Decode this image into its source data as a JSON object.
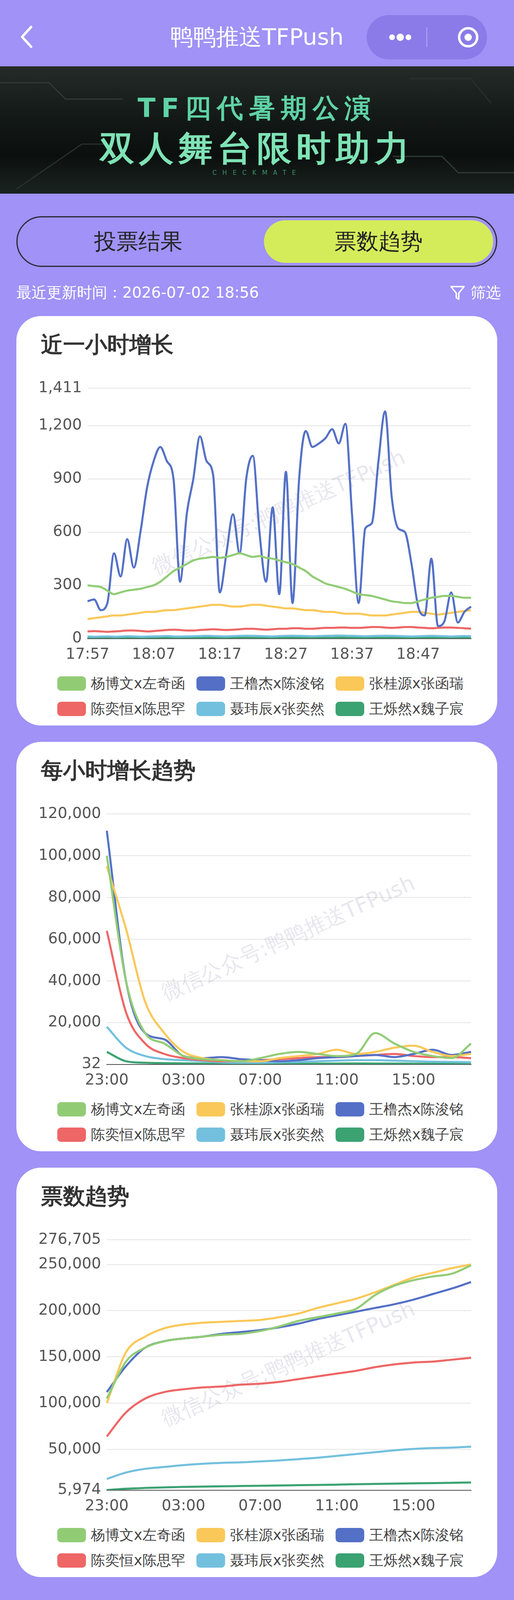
{
  "header": {
    "title": "鸭鸭推送TFPush"
  },
  "banner": {
    "line1": "TF四代暑期公演",
    "line2": "双人舞台限时助力",
    "tag": "CHECKMATE"
  },
  "tabs": [
    "投票结果",
    "票数趋势"
  ],
  "active_tab": "票数趋势",
  "update_time": "最近更新时间：2026-07-02 18:56",
  "filter": "筛选",
  "chart_data": [
    {
      "type": "line",
      "title": "近一小时增长",
      "watermark": "微信公众号:鸭鸭推送TFPush",
      "categories": [
        "17:57",
        null,
        null,
        null,
        null,
        null,
        null,
        null,
        null,
        null,
        "18:07",
        null,
        null,
        null,
        null,
        null,
        null,
        null,
        null,
        null,
        "18:17",
        null,
        null,
        null,
        null,
        null,
        null,
        null,
        null,
        null,
        "18:27",
        null,
        null,
        null,
        null,
        null,
        null,
        null,
        null,
        null,
        "18:37",
        null,
        null,
        null,
        null,
        null,
        null,
        null,
        null,
        null,
        "18:47",
        null,
        null,
        null,
        null,
        null,
        null,
        null,
        null
      ],
      "series": [
        {
          "name": "杨博文x左奇函",
          "color": "#91cc75",
          "values": [
            300,
            295,
            290,
            270,
            250,
            260,
            270,
            275,
            280,
            290,
            300,
            320,
            350,
            380,
            400,
            420,
            440,
            450,
            455,
            460,
            455,
            460,
            470,
            480,
            470,
            460,
            465,
            455,
            450,
            440,
            430,
            420,
            400,
            380,
            350,
            330,
            310,
            300,
            290,
            280,
            265,
            250,
            245,
            240,
            230,
            220,
            210,
            205,
            200,
            200,
            210,
            220,
            230,
            235,
            240,
            240,
            235,
            230,
            230
          ]
        },
        {
          "name": "王橹杰x陈浚铭",
          "color": "#5470c6",
          "values": [
            210,
            220,
            160,
            200,
            480,
            350,
            560,
            400,
            600,
            850,
            1000,
            1080,
            1000,
            900,
            320,
            700,
            900,
            1140,
            1000,
            920,
            260,
            480,
            700,
            480,
            900,
            1030,
            600,
            320,
            740,
            250,
            940,
            200,
            900,
            1170,
            1080,
            1100,
            1130,
            1180,
            1100,
            1210,
            700,
            200,
            620,
            650,
            1000,
            1280,
            800,
            620,
            600,
            420,
            180,
            130,
            450,
            70,
            100,
            260,
            90,
            150,
            180
          ]
        },
        {
          "name": "张桂源x张函瑞",
          "color": "#fac858",
          "values": [
            110,
            115,
            120,
            125,
            130,
            130,
            135,
            140,
            145,
            150,
            150,
            155,
            160,
            160,
            165,
            170,
            175,
            180,
            185,
            190,
            190,
            185,
            180,
            180,
            185,
            190,
            190,
            185,
            180,
            175,
            170,
            170,
            165,
            160,
            160,
            155,
            150,
            150,
            145,
            140,
            140,
            140,
            135,
            130,
            130,
            130,
            135,
            140,
            145,
            150,
            150,
            145,
            140,
            135,
            140,
            145,
            150,
            155,
            160
          ]
        },
        {
          "name": "陈奕恒x陈思罕",
          "color": "#ee6666",
          "values": [
            40,
            42,
            40,
            38,
            40,
            42,
            45,
            45,
            43,
            40,
            42,
            45,
            48,
            50,
            48,
            45,
            45,
            48,
            50,
            52,
            50,
            48,
            50,
            52,
            55,
            55,
            52,
            50,
            52,
            55,
            55,
            58,
            58,
            55,
            55,
            58,
            60,
            60,
            62,
            62,
            60,
            60,
            62,
            65,
            65,
            62,
            60,
            62,
            65,
            65,
            62,
            60,
            58,
            60,
            62,
            62,
            60,
            58,
            55
          ]
        },
        {
          "name": "聂玮辰x张奕然",
          "color": "#73c0de",
          "values": [
            12,
            10,
            11,
            12,
            10,
            11,
            13,
            12,
            10,
            11,
            12,
            13,
            14,
            12,
            11,
            12,
            13,
            14,
            15,
            14,
            13,
            12,
            14,
            15,
            16,
            15,
            14,
            13,
            12,
            14,
            15,
            16,
            15,
            14,
            13,
            14,
            15,
            16,
            17,
            16,
            15,
            14,
            13,
            14,
            15,
            16,
            15,
            14,
            13,
            12,
            13,
            14,
            15,
            14,
            13,
            12,
            13,
            14,
            13
          ]
        },
        {
          "name": "王烁然x魏子宸",
          "color": "#3ba272",
          "values": [
            5,
            4,
            5,
            6,
            5,
            4,
            5,
            6,
            5,
            4,
            5,
            6,
            5,
            4,
            5,
            6,
            5,
            4,
            5,
            6,
            5,
            4,
            5,
            6,
            5,
            4,
            5,
            6,
            5,
            4,
            5,
            6,
            5,
            4,
            5,
            6,
            5,
            4,
            5,
            6,
            5,
            4,
            5,
            6,
            5,
            4,
            5,
            6,
            5,
            4,
            5,
            6,
            5,
            4,
            5,
            6,
            5,
            4,
            5
          ]
        }
      ],
      "ylim": [
        0,
        1411
      ],
      "yticks": [
        0,
        300,
        600,
        900,
        {
          "value": 1200,
          "label": "1,200"
        },
        {
          "value": 1411,
          "label": "1,411"
        }
      ],
      "grid": true,
      "legend": "bottom"
    },
    {
      "type": "line",
      "title": "每小时增长趋势",
      "watermark": "微信公众号:鸭鸭推送TFPush",
      "categories": [
        "23:00",
        null,
        null,
        null,
        "03:00",
        null,
        null,
        null,
        "07:00",
        null,
        null,
        null,
        "11:00",
        null,
        null,
        null,
        "15:00",
        null,
        null,
        null
      ],
      "series": [
        {
          "name": "杨博文x左奇函",
          "color": "#91cc75",
          "values": [
            100000,
            40000,
            15000,
            10000,
            4000,
            2500,
            2000,
            1500,
            3000,
            5000,
            6000,
            5000,
            4000,
            5000,
            15000,
            10000,
            6000,
            4000,
            3000,
            10000
          ]
        },
        {
          "name": "张桂源x张函瑞",
          "color": "#fac858",
          "values": [
            95000,
            65000,
            30000,
            15000,
            6000,
            3000,
            2000,
            1500,
            1500,
            3000,
            4000,
            5000,
            7000,
            5000,
            6000,
            8000,
            9000,
            6000,
            4000,
            5000
          ]
        },
        {
          "name": "王橹杰x陈浚铭",
          "color": "#5470c6",
          "values": [
            112000,
            40000,
            15000,
            12000,
            4000,
            3000,
            3500,
            2500,
            2000,
            1500,
            2000,
            3000,
            3500,
            4000,
            4500,
            3500,
            5000,
            7000,
            4500,
            6000
          ]
        },
        {
          "name": "陈奕恒x陈思罕",
          "color": "#ee6666",
          "values": [
            64000,
            25000,
            10000,
            5000,
            3000,
            2000,
            1500,
            1500,
            2000,
            2500,
            3000,
            3500,
            3500,
            4000,
            4500,
            5000,
            4000,
            3500,
            3500,
            3000
          ]
        },
        {
          "name": "聂玮辰x张奕然",
          "color": "#73c0de",
          "values": [
            18000,
            8000,
            4000,
            2500,
            2000,
            1500,
            1000,
            800,
            800,
            1000,
            1200,
            1500,
            1800,
            2000,
            2000,
            1800,
            1500,
            1300,
            1200,
            1000
          ]
        },
        {
          "name": "王烁然x魏子宸",
          "color": "#3ba272",
          "values": [
            6000,
            1500,
            800,
            600,
            500,
            400,
            300,
            250,
            250,
            300,
            350,
            400,
            400,
            450,
            400,
            400,
            350,
            350,
            300,
            300
          ]
        }
      ],
      "ylim": [
        32,
        120000
      ],
      "yticks": [
        32,
        {
          "value": 20000,
          "label": "20,000"
        },
        {
          "value": 40000,
          "label": "40,000"
        },
        {
          "value": 60000,
          "label": "60,000"
        },
        {
          "value": 80000,
          "label": "80,000"
        },
        {
          "value": 100000,
          "label": "100,000"
        },
        {
          "value": 120000,
          "label": "120,000"
        }
      ],
      "grid": true,
      "legend": "bottom"
    },
    {
      "type": "line",
      "title": "票数趋势",
      "watermark": "微信公众号:鸭鸭推送TFPush",
      "categories": [
        "23:00",
        null,
        null,
        null,
        "03:00",
        null,
        null,
        null,
        "07:00",
        null,
        null,
        null,
        "11:00",
        null,
        null,
        null,
        "15:00",
        null,
        null,
        null
      ],
      "series": [
        {
          "name": "杨博文x左奇函",
          "color": "#91cc75",
          "values": [
            105000,
            145000,
            160000,
            167000,
            170000,
            172000,
            174000,
            175000,
            178000,
            183000,
            189000,
            193000,
            197000,
            202000,
            217000,
            227000,
            233000,
            237000,
            240000,
            249000
          ]
        },
        {
          "name": "张桂源x张函瑞",
          "color": "#fac858",
          "values": [
            100000,
            155000,
            172000,
            181000,
            185000,
            187000,
            188000,
            189000,
            190000,
            193000,
            197000,
            203000,
            208000,
            213000,
            220000,
            228000,
            236000,
            241000,
            246000,
            250000
          ]
        },
        {
          "name": "王橹杰x陈浚铭",
          "color": "#5470c6",
          "values": [
            112000,
            140000,
            160000,
            167000,
            170000,
            172000,
            175000,
            177000,
            179000,
            182000,
            186000,
            191000,
            195000,
            199000,
            203000,
            207000,
            212000,
            218000,
            224000,
            231000
          ]
        },
        {
          "name": "陈奕恒x陈思罕",
          "color": "#ee6666",
          "values": [
            64000,
            90000,
            105000,
            112000,
            115000,
            117000,
            118000,
            120000,
            121000,
            123000,
            126000,
            129000,
            132000,
            135000,
            139000,
            142000,
            144000,
            145000,
            147000,
            149000
          ]
        },
        {
          "name": "聂玮辰x张奕然",
          "color": "#73c0de",
          "values": [
            18000,
            25000,
            29000,
            31000,
            33000,
            34500,
            35500,
            36000,
            37000,
            38000,
            39500,
            41000,
            43000,
            45000,
            47000,
            49000,
            50500,
            51500,
            52000,
            53000
          ]
        },
        {
          "name": "王烁然x魏子宸",
          "color": "#3ba272",
          "values": [
            6000,
            7500,
            8300,
            8900,
            9400,
            9800,
            10100,
            10400,
            10700,
            11000,
            11300,
            11600,
            11900,
            12300,
            12700,
            13000,
            13300,
            13600,
            13900,
            14200
          ]
        }
      ],
      "ylim": [
        5974,
        276705
      ],
      "yticks": [
        {
          "value": 5974,
          "label": "5,974"
        },
        {
          "value": 50000,
          "label": "50,000"
        },
        {
          "value": 100000,
          "label": "100,000"
        },
        {
          "value": 150000,
          "label": "150,000"
        },
        {
          "value": 200000,
          "label": "200,000"
        },
        {
          "value": 250000,
          "label": "250,000"
        },
        {
          "value": 276705,
          "label": "276,705"
        }
      ],
      "grid": true,
      "legend": "bottom"
    }
  ]
}
